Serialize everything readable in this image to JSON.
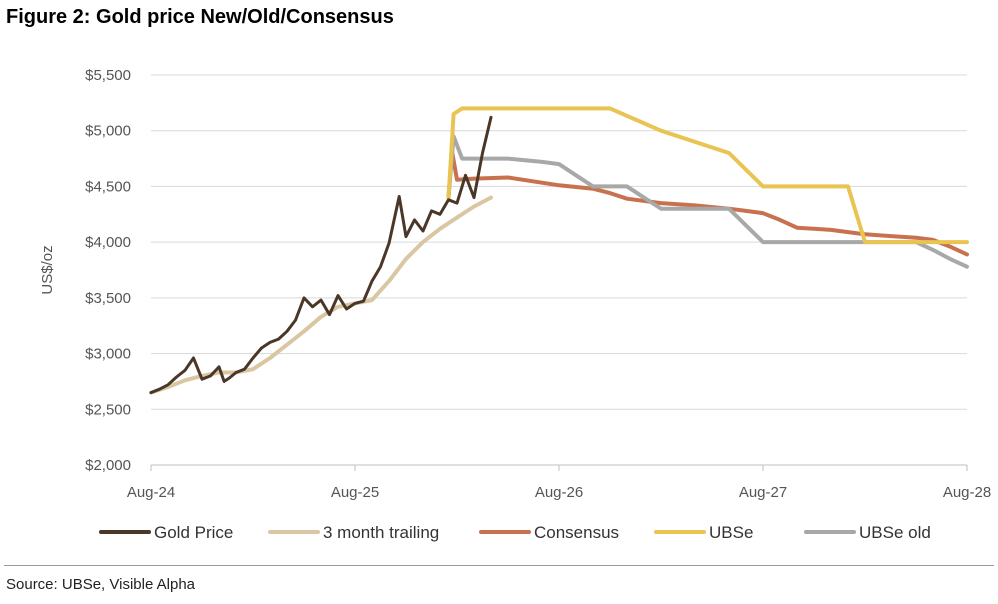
{
  "title": "Figure 2: Gold price New/Old/Consensus",
  "source": "Source: UBSe, Visible Alpha",
  "chart_data": {
    "type": "line",
    "title": "Figure 2: Gold price New/Old/Consensus",
    "xlabel": "",
    "ylabel": "US$/oz",
    "x_unit": "months since Aug-24",
    "xlim": [
      0,
      48
    ],
    "ylim": [
      2000,
      5500
    ],
    "yticks": [
      2000,
      2500,
      3000,
      3500,
      4000,
      4500,
      5000,
      5500
    ],
    "ytick_labels": [
      "$2,000",
      "$2,500",
      "$3,000",
      "$3,500",
      "$4,000",
      "$4,500",
      "$5,000",
      "$5,500"
    ],
    "xticks": [
      0,
      12,
      24,
      36,
      48
    ],
    "xtick_labels": [
      "Aug-24",
      "Aug-25",
      "Aug-26",
      "Aug-27",
      "Aug-28"
    ],
    "grid": true,
    "legend_position": "bottom",
    "series": [
      {
        "name": "Gold Price",
        "color": "#4a3728",
        "x": [
          0,
          0.5,
          1,
          1.5,
          2,
          2.5,
          3,
          3.5,
          4,
          4.3,
          4.6,
          5,
          5.5,
          6,
          6.5,
          7,
          7.5,
          8,
          8.5,
          9,
          9.5,
          10,
          10.5,
          11,
          11.5,
          12,
          12.5,
          13,
          13.5,
          14,
          14.3,
          14.6,
          15,
          15.5,
          16,
          16.5,
          17,
          17.5,
          18,
          18.5,
          19,
          19.5,
          20
        ],
        "values": [
          2650,
          2680,
          2720,
          2790,
          2850,
          2960,
          2770,
          2800,
          2880,
          2750,
          2780,
          2830,
          2860,
          2960,
          3050,
          3100,
          3130,
          3200,
          3300,
          3500,
          3420,
          3480,
          3350,
          3520,
          3400,
          3450,
          3470,
          3650,
          3780,
          3990,
          4200,
          4410,
          4050,
          4200,
          4100,
          4280,
          4250,
          4380,
          4350,
          4600,
          4400,
          4800,
          5120
        ]
      },
      {
        "name": "3 month trailing",
        "color": "#d9c7a3",
        "x": [
          0,
          1,
          2,
          3,
          4,
          5,
          6,
          7,
          8,
          9,
          10,
          11,
          12,
          13,
          14,
          15,
          16,
          17,
          18,
          19,
          20
        ],
        "values": [
          2650,
          2700,
          2760,
          2800,
          2830,
          2830,
          2860,
          2960,
          3080,
          3200,
          3330,
          3420,
          3450,
          3480,
          3650,
          3850,
          4000,
          4120,
          4220,
          4320,
          4400
        ]
      },
      {
        "name": "Consensus",
        "color": "#c8714e",
        "x": [
          17.5,
          17.7,
          18,
          19,
          21,
          24,
          26,
          27,
          28,
          30,
          32,
          34,
          35,
          36,
          37,
          38,
          39,
          40,
          41,
          42,
          43,
          44,
          45,
          46,
          47,
          48
        ],
        "values": [
          4400,
          4820,
          4560,
          4570,
          4580,
          4510,
          4480,
          4440,
          4390,
          4350,
          4330,
          4300,
          4280,
          4260,
          4200,
          4130,
          4120,
          4110,
          4090,
          4070,
          4060,
          4050,
          4040,
          4020,
          3960,
          3890
        ]
      },
      {
        "name": "UBSe",
        "color": "#e9c452",
        "x": [
          17.5,
          17.8,
          18.3,
          19,
          20,
          23,
          27,
          30,
          32,
          34,
          36,
          37,
          38,
          39,
          40,
          41,
          42,
          43,
          44,
          45,
          46,
          47,
          48
        ],
        "values": [
          4400,
          5150,
          5200,
          5200,
          5200,
          5200,
          5200,
          5000,
          4900,
          4800,
          4500,
          4500,
          4500,
          4500,
          4500,
          4500,
          4000,
          4000,
          4000,
          4000,
          4000,
          4000,
          4000
        ]
      },
      {
        "name": "UBSe old",
        "color": "#a8a8a8",
        "x": [
          17.5,
          17.8,
          18.3,
          19,
          21,
          23,
          24,
          25,
          26,
          27,
          28,
          29,
          30,
          31,
          32,
          33,
          34,
          35,
          36,
          37,
          38,
          39,
          40,
          41,
          42,
          43,
          44,
          45,
          46,
          47,
          48
        ],
        "values": [
          4400,
          4950,
          4750,
          4750,
          4750,
          4720,
          4700,
          4600,
          4500,
          4500,
          4500,
          4400,
          4300,
          4300,
          4300,
          4300,
          4300,
          4150,
          4000,
          4000,
          4000,
          4000,
          4000,
          4000,
          4000,
          4000,
          4000,
          4000,
          3930,
          3850,
          3780
        ]
      }
    ]
  }
}
